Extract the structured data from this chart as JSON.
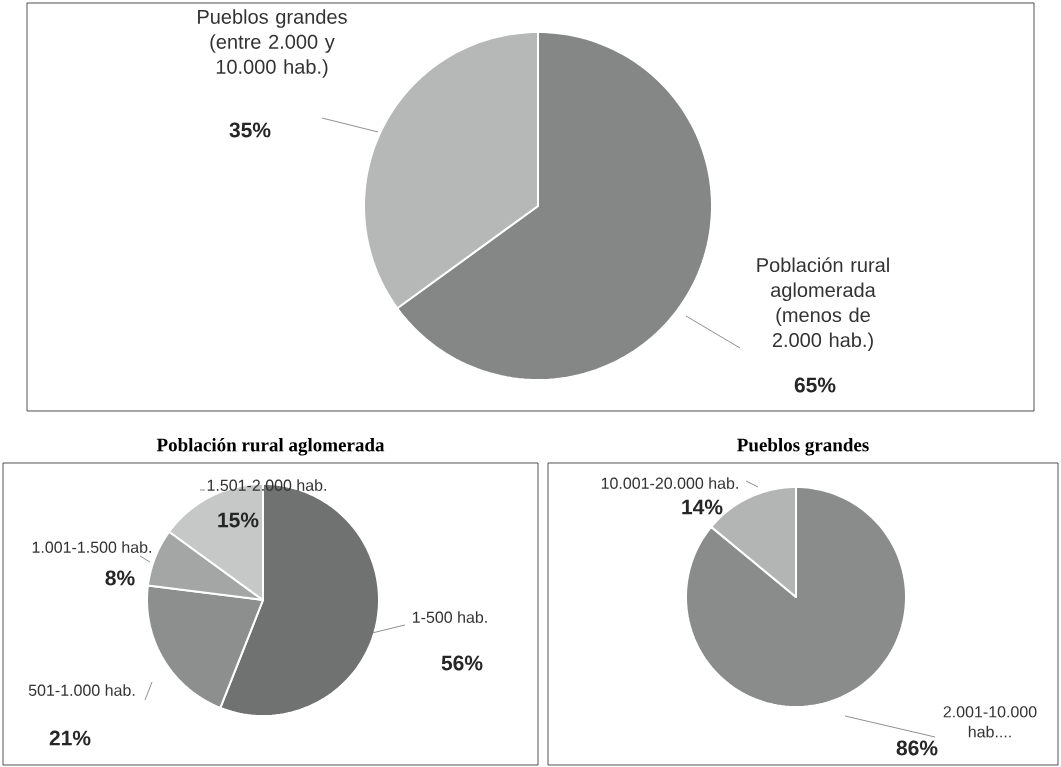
{
  "chart_data": [
    {
      "type": "pie",
      "categories": [
        "Población rural aglomerada (menos de 2.000 hab.)",
        "Pueblos grandes (entre 2.000 y 10.000 hab.)"
      ],
      "values": [
        65,
        35
      ],
      "colors": [
        "#858787",
        "#b6b7b7"
      ],
      "value_labels": [
        "65%",
        "35%"
      ]
    },
    {
      "type": "pie",
      "title": "Población rural aglomerada",
      "categories": [
        "1-500 hab.",
        "501-1.000 hab.",
        "1.001-1.500 hab.",
        "1.501-2.000 hab."
      ],
      "values": [
        56,
        21,
        8,
        15
      ],
      "colors": [
        "#707171",
        "#8d8e8e",
        "#a4a5a5",
        "#c6c7c7"
      ],
      "value_labels": [
        "56%",
        "21%",
        "8%",
        "15%"
      ]
    },
    {
      "type": "pie",
      "title": "Pueblos grandes",
      "categories": [
        "2.001-10.000 hab....",
        "10.001-20.000 hab."
      ],
      "values": [
        86,
        14
      ],
      "colors": [
        "#8a8b8b",
        "#b3b4b4"
      ],
      "value_labels": [
        "86%",
        "14%"
      ]
    }
  ]
}
